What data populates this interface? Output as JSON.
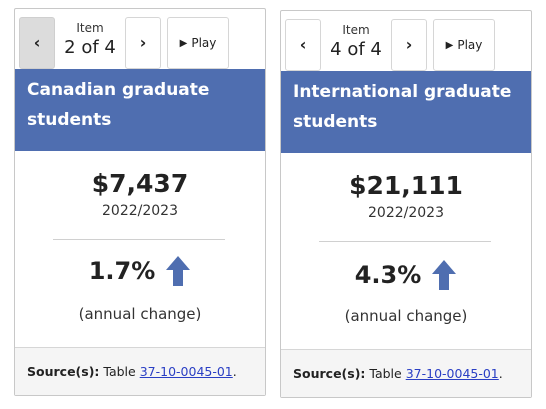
{
  "cards": [
    {
      "item_word": "Item",
      "item_count": "2 of 4",
      "play_label": "Play",
      "title": "Canadian graduate students",
      "value": "$7,437",
      "period": "2022/2023",
      "change": "1.7%",
      "change_direction": "up",
      "change_label": "(annual change)",
      "source_label": "Source(s):",
      "source_text": "Table",
      "source_link": "37-10-0045-01",
      "source_end": "."
    },
    {
      "item_word": "Item",
      "item_count": "4 of 4",
      "play_label": "Play",
      "title": "International graduate students",
      "value": "$21,111",
      "period": "2022/2023",
      "change": "4.3%",
      "change_direction": "up",
      "change_label": "(annual change)",
      "source_label": "Source(s):",
      "source_text": "Table",
      "source_link": "37-10-0045-01",
      "source_end": "."
    }
  ],
  "icons": {
    "prev": "chevron-left-icon",
    "next": "chevron-right-icon",
    "play": "play-icon",
    "change": "arrow-up-icon"
  },
  "colors": {
    "header_bg": "#4f6eb0",
    "arrow": "#4f6eb0",
    "link": "#2a3fc4",
    "disabled_button": "#dcdcdc"
  }
}
